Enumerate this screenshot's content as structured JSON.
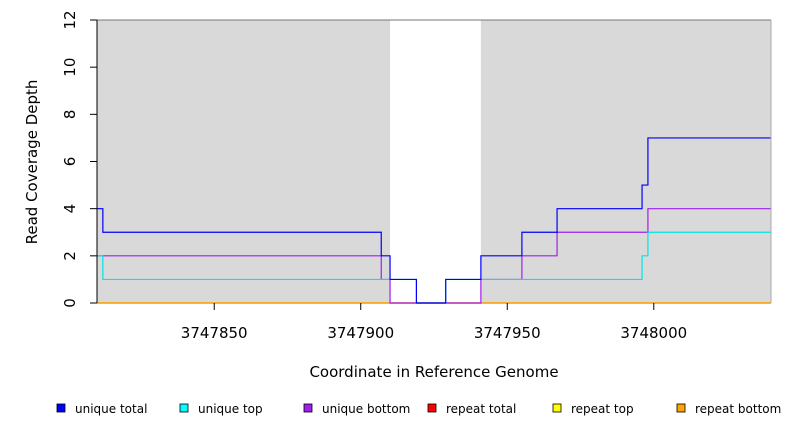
{
  "chart_data": {
    "type": "line",
    "title": "",
    "xlabel": "Coordinate in Reference Genome",
    "ylabel": "Read Coverage Depth",
    "xlim": [
      3747810,
      3748040
    ],
    "ylim": [
      0,
      12
    ],
    "x_ticks": [
      3747850,
      3747900,
      3747950,
      3748000
    ],
    "x_tick_labels": [
      "3747850",
      "3747900",
      "3747950",
      "3748000"
    ],
    "y_ticks": [
      0,
      2,
      4,
      6,
      8,
      10,
      12
    ],
    "y_tick_labels": [
      "0",
      "2",
      "4",
      "6",
      "8",
      "10",
      "12"
    ],
    "shaded_regions": [
      {
        "x": [
          3747810,
          3747910
        ],
        "color": "#d9d9d9"
      },
      {
        "x": [
          3747941,
          3748040
        ],
        "color": "#d9d9d9"
      }
    ],
    "step_series": [
      {
        "name": "unique total",
        "color": "#0000ff",
        "points": [
          [
            3747810,
            4
          ],
          [
            3747812,
            3
          ],
          [
            3747907,
            2
          ],
          [
            3747910,
            1
          ],
          [
            3747919,
            0
          ],
          [
            3747929,
            1
          ],
          [
            3747941,
            2
          ],
          [
            3747955,
            3
          ],
          [
            3747967,
            4
          ],
          [
            3747996,
            5
          ],
          [
            3747998,
            7
          ],
          [
            3748040,
            7
          ]
        ]
      },
      {
        "name": "unique top",
        "color": "#00e5e5",
        "points": [
          [
            3747810,
            2
          ],
          [
            3747812,
            1
          ],
          [
            3747910,
            1
          ],
          [
            3747919,
            0
          ],
          [
            3747929,
            1
          ],
          [
            3747941,
            1
          ],
          [
            3747996,
            2
          ],
          [
            3747998,
            3
          ],
          [
            3748040,
            3
          ]
        ]
      },
      {
        "name": "unique bottom",
        "color": "#a020f0",
        "points": [
          [
            3747810,
            2
          ],
          [
            3747907,
            1
          ],
          [
            3747910,
            0
          ],
          [
            3747941,
            1
          ],
          [
            3747955,
            2
          ],
          [
            3747967,
            3
          ],
          [
            3747998,
            4
          ],
          [
            3748040,
            4
          ]
        ]
      },
      {
        "name": "repeat total",
        "color": "#ff0000",
        "points": [
          [
            3747810,
            0
          ],
          [
            3748040,
            0
          ]
        ]
      },
      {
        "name": "repeat top",
        "color": "#ffff00",
        "points": [
          [
            3747810,
            0
          ],
          [
            3748040,
            0
          ]
        ]
      },
      {
        "name": "repeat bottom",
        "color": "#ffa500",
        "points": [
          [
            3747810,
            0
          ],
          [
            3748040,
            0
          ]
        ]
      }
    ],
    "legend": {
      "placement": "bottom",
      "items": [
        {
          "label": "unique total",
          "color": "#0000ff"
        },
        {
          "label": "unique top",
          "color": "#00ffff"
        },
        {
          "label": "unique bottom",
          "color": "#a020f0"
        },
        {
          "label": "repeat total",
          "color": "#ff0000"
        },
        {
          "label": "repeat top",
          "color": "#ffff00"
        },
        {
          "label": "repeat bottom",
          "color": "#ffa500"
        }
      ]
    }
  }
}
